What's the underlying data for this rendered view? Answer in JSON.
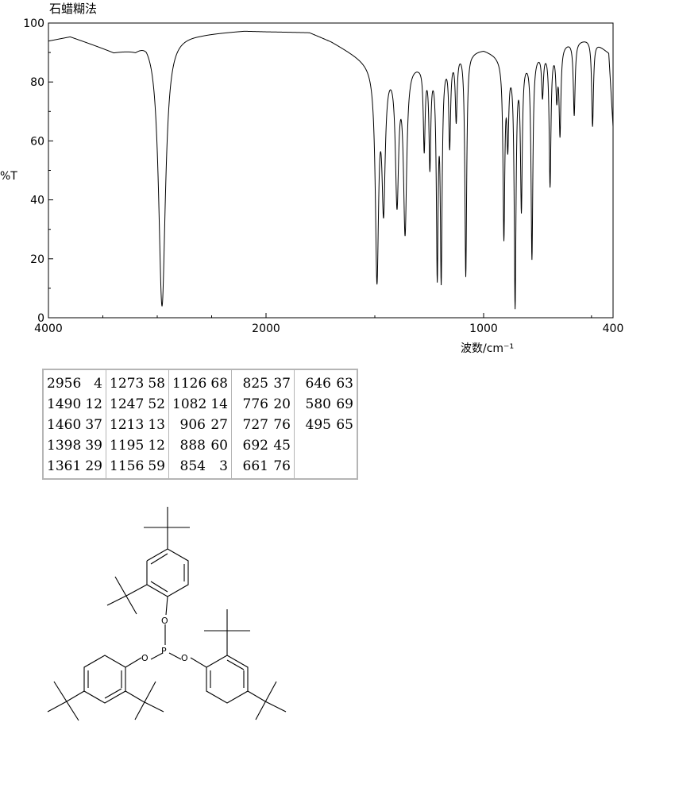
{
  "title": "石蜡糊法",
  "chart_data": {
    "type": "line",
    "xlabel": "波数/cm⁻¹",
    "ylabel": "%T",
    "xlim": [
      4000,
      400
    ],
    "ylim": [
      0,
      100
    ],
    "x_ticks": [
      "4000",
      "2000",
      "1000",
      "400"
    ],
    "y_ticks": [
      "0",
      "20",
      "40",
      "60",
      "80",
      "100"
    ],
    "grid": false,
    "baseline": [
      [
        4000,
        94
      ],
      [
        3800,
        95.5
      ],
      [
        3600,
        93
      ],
      [
        3400,
        90.5
      ],
      [
        3200,
        92
      ],
      [
        3100,
        96
      ],
      [
        2600,
        96.5
      ],
      [
        2200,
        97.5
      ],
      [
        1800,
        97
      ],
      [
        1700,
        94
      ],
      [
        1600,
        90
      ],
      [
        1500,
        86
      ],
      [
        1400,
        88
      ],
      [
        1300,
        87
      ],
      [
        1200,
        88
      ],
      [
        1100,
        92
      ],
      [
        1050,
        91
      ],
      [
        1000,
        91.5
      ],
      [
        950,
        90
      ],
      [
        900,
        88
      ],
      [
        800,
        89
      ],
      [
        700,
        92
      ],
      [
        600,
        94
      ],
      [
        500,
        95
      ],
      [
        420,
        90
      ],
      [
        400,
        65
      ]
    ],
    "peaks": [
      {
        "wavenumber": 2956,
        "transmittance": 4
      },
      {
        "wavenumber": 1490,
        "transmittance": 12
      },
      {
        "wavenumber": 1460,
        "transmittance": 37
      },
      {
        "wavenumber": 1398,
        "transmittance": 39
      },
      {
        "wavenumber": 1361,
        "transmittance": 29
      },
      {
        "wavenumber": 1273,
        "transmittance": 58
      },
      {
        "wavenumber": 1247,
        "transmittance": 52
      },
      {
        "wavenumber": 1213,
        "transmittance": 13
      },
      {
        "wavenumber": 1195,
        "transmittance": 12
      },
      {
        "wavenumber": 1156,
        "transmittance": 59
      },
      {
        "wavenumber": 1126,
        "transmittance": 68
      },
      {
        "wavenumber": 1082,
        "transmittance": 14
      },
      {
        "wavenumber": 906,
        "transmittance": 27
      },
      {
        "wavenumber": 888,
        "transmittance": 60
      },
      {
        "wavenumber": 854,
        "transmittance": 3
      },
      {
        "wavenumber": 825,
        "transmittance": 37
      },
      {
        "wavenumber": 776,
        "transmittance": 20
      },
      {
        "wavenumber": 727,
        "transmittance": 76
      },
      {
        "wavenumber": 692,
        "transmittance": 45
      },
      {
        "wavenumber": 661,
        "transmittance": 76
      },
      {
        "wavenumber": 646,
        "transmittance": 63
      },
      {
        "wavenumber": 580,
        "transmittance": 69
      },
      {
        "wavenumber": 495,
        "transmittance": 65
      }
    ]
  },
  "peak_table": {
    "columns": [
      [
        [
          "2956",
          "4"
        ],
        [
          "1490",
          "12"
        ],
        [
          "1460",
          "37"
        ],
        [
          "1398",
          "39"
        ],
        [
          "1361",
          "29"
        ]
      ],
      [
        [
          "1273",
          "58"
        ],
        [
          "1247",
          "52"
        ],
        [
          "1213",
          "13"
        ],
        [
          "1195",
          "12"
        ],
        [
          "1156",
          "59"
        ]
      ],
      [
        [
          "1126",
          "68"
        ],
        [
          "1082",
          "14"
        ],
        [
          "906",
          "27"
        ],
        [
          "888",
          "60"
        ],
        [
          "854",
          "3"
        ]
      ],
      [
        [
          "825",
          "37"
        ],
        [
          "776",
          "20"
        ],
        [
          "727",
          "76"
        ],
        [
          "692",
          "45"
        ],
        [
          "661",
          "76"
        ]
      ],
      [
        [
          "646",
          "63"
        ],
        [
          "580",
          "69"
        ],
        [
          "495",
          "65"
        ]
      ]
    ]
  },
  "structure": {
    "atom_labels": {
      "phosphorus": "P",
      "oxygen": "O"
    }
  }
}
